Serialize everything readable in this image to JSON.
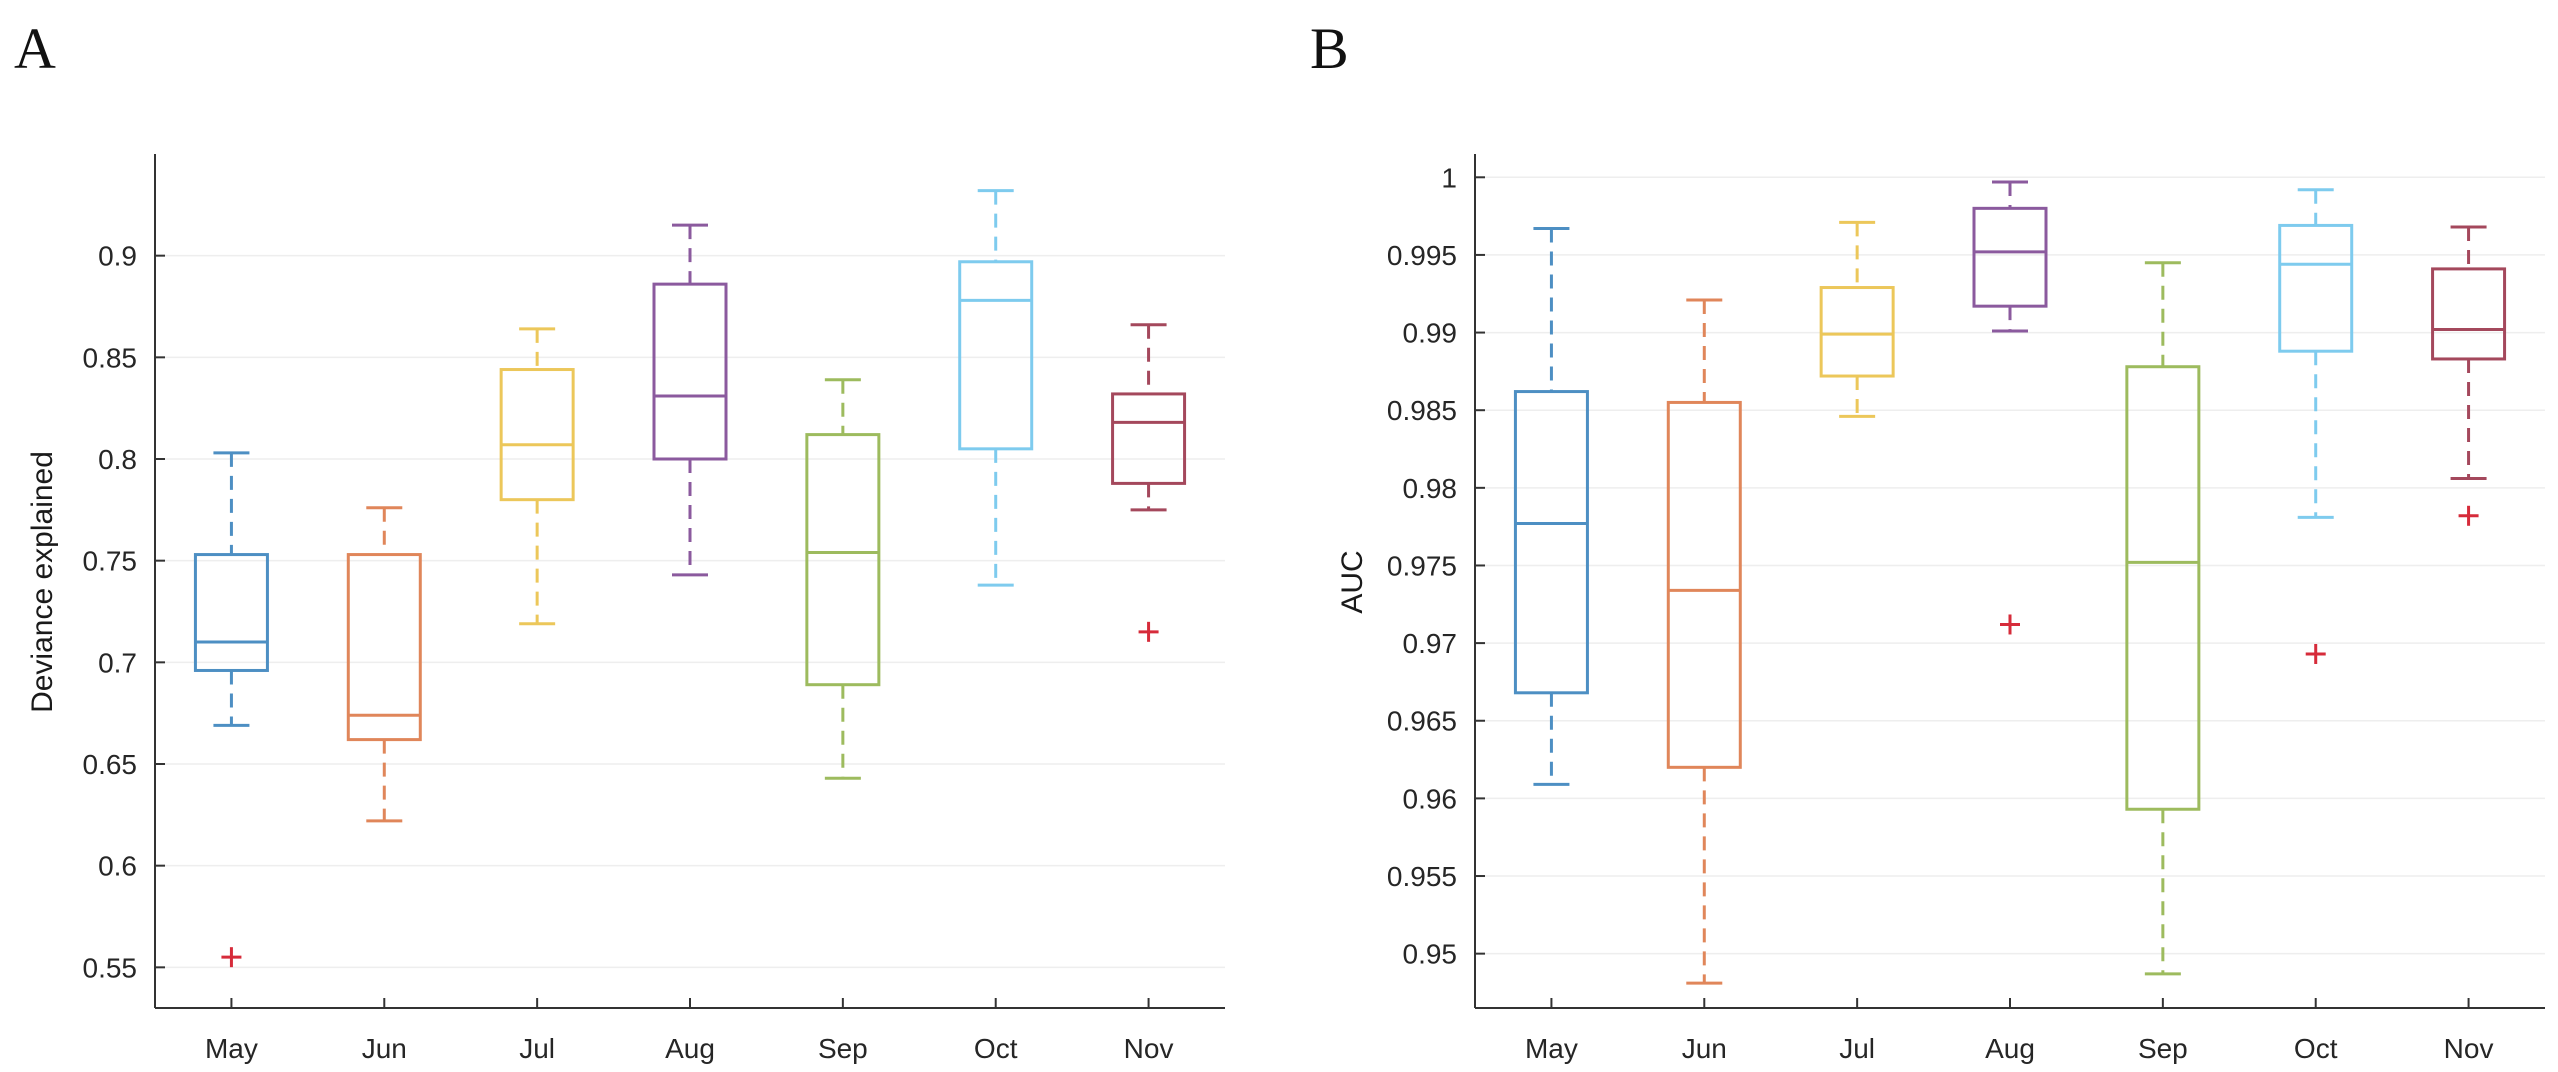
{
  "chart_data": [
    {
      "panel_label": "A",
      "type": "boxplot",
      "title": "",
      "xlabel": "",
      "ylabel": "Deviance explained",
      "ylim": [
        0.53,
        0.95
      ],
      "yticks": [
        0.55,
        0.6,
        0.65,
        0.7,
        0.75,
        0.8,
        0.85,
        0.9
      ],
      "ytick_labels": [
        "0.55",
        "0.6",
        "0.65",
        "0.7",
        "0.75",
        "0.8",
        "0.85",
        "0.9"
      ],
      "grid": true,
      "categories": [
        "May",
        "Jun",
        "Jul",
        "Aug",
        "Sep",
        "Oct",
        "Nov"
      ],
      "boxes": [
        {
          "name": "May",
          "color": "#4d8fc3",
          "whisker_low": 0.669,
          "q1": 0.696,
          "median": 0.71,
          "q3": 0.753,
          "whisker_high": 0.803,
          "outliers": [
            0.555
          ]
        },
        {
          "name": "Jun",
          "color": "#e0865a",
          "whisker_low": 0.622,
          "q1": 0.662,
          "median": 0.674,
          "q3": 0.753,
          "whisker_high": 0.776,
          "outliers": []
        },
        {
          "name": "Jul",
          "color": "#ecc75a",
          "whisker_low": 0.719,
          "q1": 0.78,
          "median": 0.807,
          "q3": 0.844,
          "whisker_high": 0.864,
          "outliers": []
        },
        {
          "name": "Aug",
          "color": "#8b5a9e",
          "whisker_low": 0.743,
          "q1": 0.8,
          "median": 0.831,
          "q3": 0.886,
          "whisker_high": 0.915,
          "outliers": []
        },
        {
          "name": "Sep",
          "color": "#9dbb5e",
          "whisker_low": 0.643,
          "q1": 0.689,
          "median": 0.754,
          "q3": 0.812,
          "whisker_high": 0.839,
          "outliers": []
        },
        {
          "name": "Oct",
          "color": "#7ecbee",
          "whisker_low": 0.738,
          "q1": 0.805,
          "median": 0.878,
          "q3": 0.897,
          "whisker_high": 0.932,
          "outliers": []
        },
        {
          "name": "Nov",
          "color": "#a4485c",
          "whisker_low": 0.775,
          "q1": 0.788,
          "median": 0.818,
          "q3": 0.832,
          "whisker_high": 0.866,
          "outliers": [
            0.715
          ]
        }
      ],
      "outlier_color": "#d62b3a"
    },
    {
      "panel_label": "B",
      "type": "boxplot",
      "title": "",
      "xlabel": "",
      "ylabel": "AUC",
      "ylim": [
        0.9465,
        1.0015
      ],
      "yticks": [
        0.95,
        0.955,
        0.96,
        0.965,
        0.97,
        0.975,
        0.98,
        0.985,
        0.99,
        0.995,
        1
      ],
      "ytick_labels": [
        "0.95",
        "0.955",
        "0.96",
        "0.965",
        "0.97",
        "0.975",
        "0.98",
        "0.985",
        "0.99",
        "0.995",
        "1"
      ],
      "grid": true,
      "categories": [
        "May",
        "Jun",
        "Jul",
        "Aug",
        "Sep",
        "Oct",
        "Nov"
      ],
      "boxes": [
        {
          "name": "May",
          "color": "#4d8fc3",
          "whisker_low": 0.9609,
          "q1": 0.9668,
          "median": 0.9777,
          "q3": 0.9862,
          "whisker_high": 0.9967,
          "outliers": []
        },
        {
          "name": "Jun",
          "color": "#e0865a",
          "whisker_low": 0.9481,
          "q1": 0.962,
          "median": 0.9734,
          "q3": 0.9855,
          "whisker_high": 0.9921,
          "outliers": []
        },
        {
          "name": "Jul",
          "color": "#ecc75a",
          "whisker_low": 0.9846,
          "q1": 0.9872,
          "median": 0.9899,
          "q3": 0.9929,
          "whisker_high": 0.9971,
          "outliers": []
        },
        {
          "name": "Aug",
          "color": "#8b5a9e",
          "whisker_low": 0.9901,
          "q1": 0.9917,
          "median": 0.9952,
          "q3": 0.998,
          "whisker_high": 0.9997,
          "outliers": [
            0.9712
          ]
        },
        {
          "name": "Sep",
          "color": "#9dbb5e",
          "whisker_low": 0.9487,
          "q1": 0.9593,
          "median": 0.9752,
          "q3": 0.9878,
          "whisker_high": 0.9945,
          "outliers": []
        },
        {
          "name": "Oct",
          "color": "#7ecbee",
          "whisker_low": 0.9781,
          "q1": 0.9888,
          "median": 0.9944,
          "q3": 0.9969,
          "whisker_high": 0.9992,
          "outliers": [
            0.9693
          ]
        },
        {
          "name": "Nov",
          "color": "#a4485c",
          "whisker_low": 0.9806,
          "q1": 0.9883,
          "median": 0.9902,
          "q3": 0.9941,
          "whisker_high": 0.9968,
          "outliers": [
            0.9782
          ]
        }
      ],
      "outlier_color": "#d62b3a"
    }
  ]
}
